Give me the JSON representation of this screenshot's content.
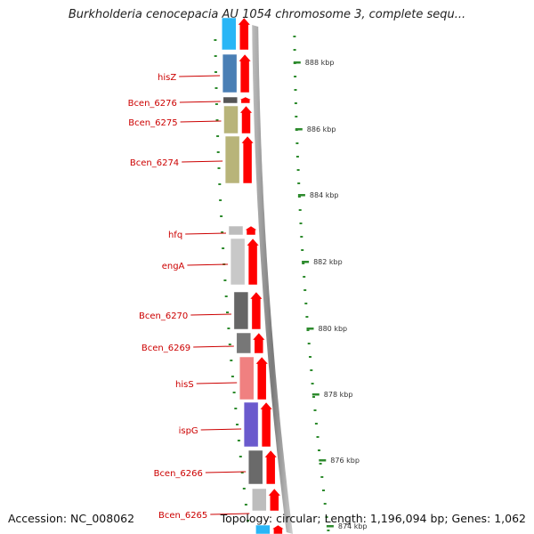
{
  "title": "Burkholderia cenocepacia AU 1054 chromosome 3, complete sequ...",
  "footer": {
    "accession": "Accession: NC_008062",
    "summary": "Topology: circular; Length: 1,196,094 bp; Genes: 1,062"
  },
  "colors": {
    "gene_label": "#cc0000",
    "arrow": "#ff0000",
    "backbone": "#8a8a8a",
    "tick": "#2e8b2e"
  },
  "scale_labels": [
    "888 kbp",
    "886 kbp",
    "884 kbp",
    "882 kbp",
    "880 kbp",
    "878 kbp",
    "876 kbp",
    "874 kbp"
  ],
  "genes": [
    {
      "name": "",
      "color": "#29b6f6",
      "strand": "reverse"
    },
    {
      "name": "hisZ",
      "color": "#4a7fb5",
      "strand": "reverse"
    },
    {
      "name": "Bcen_6276",
      "color": "#555555",
      "strand": "reverse"
    },
    {
      "name": "Bcen_6275",
      "color": "#b8b47a",
      "strand": "reverse"
    },
    {
      "name": "Bcen_6274",
      "color": "#b8b47a",
      "strand": "reverse"
    },
    {
      "name": "hfq",
      "color": "#bdbdbd",
      "strand": "reverse"
    },
    {
      "name": "engA",
      "color": "#c8c8c8",
      "strand": "reverse"
    },
    {
      "name": "Bcen_6270",
      "color": "#666666",
      "strand": "reverse"
    },
    {
      "name": "Bcen_6269",
      "color": "#777777",
      "strand": "reverse"
    },
    {
      "name": "hisS",
      "color": "#f08080",
      "strand": "reverse"
    },
    {
      "name": "ispG",
      "color": "#6a5acd",
      "strand": "reverse"
    },
    {
      "name": "Bcen_6266",
      "color": "#6a6a6a",
      "strand": "reverse"
    },
    {
      "name": "Bcen_6265",
      "color": "#bdbdbd",
      "strand": "reverse"
    },
    {
      "name": "",
      "color": "#29b6f6",
      "strand": "reverse"
    }
  ]
}
